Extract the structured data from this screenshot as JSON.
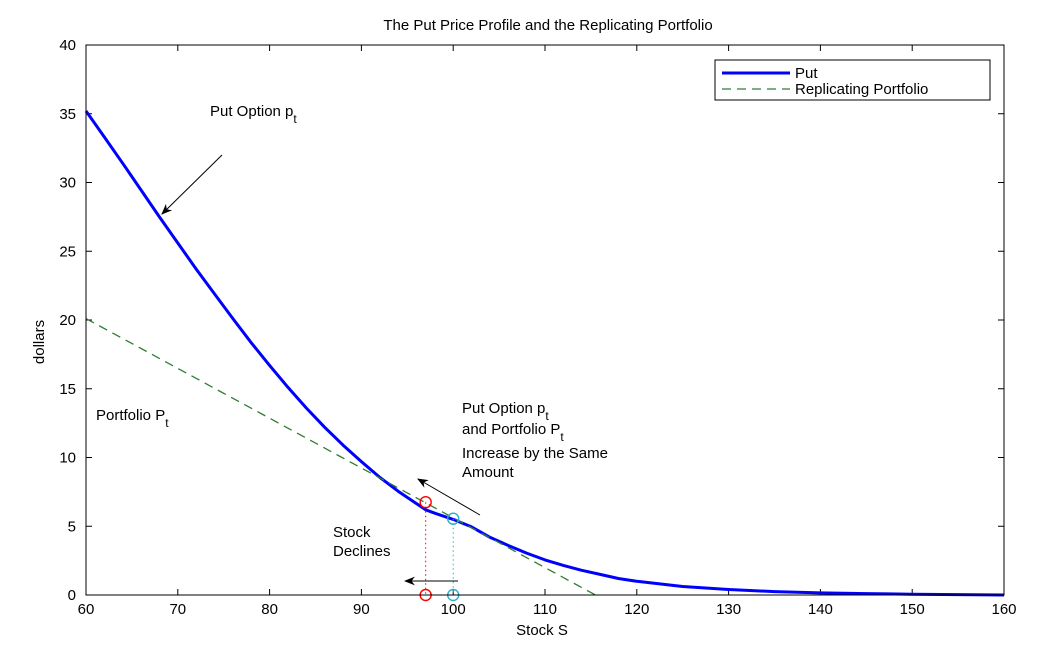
{
  "chart_data": {
    "type": "line",
    "title": "The Put Price Profile and the Replicating Portfolio",
    "xlabel": "Stock S",
    "ylabel": "dollars",
    "xlim": [
      60,
      160
    ],
    "ylim": [
      0,
      40
    ],
    "xticks": [
      60,
      70,
      80,
      90,
      100,
      110,
      120,
      130,
      140,
      150,
      160
    ],
    "yticks": [
      0,
      5,
      10,
      15,
      20,
      25,
      30,
      35,
      40
    ],
    "grid": false,
    "legend_position": "top-right",
    "series": [
      {
        "name": "Put",
        "style": "solid",
        "color": "#0000ff",
        "x": [
          60,
          62,
          64,
          66,
          68,
          70,
          72,
          74,
          76,
          78,
          80,
          82,
          84,
          86,
          88,
          90,
          92,
          94,
          96,
          97,
          98,
          100,
          102,
          104,
          106,
          108,
          110,
          112,
          114,
          116,
          118,
          120,
          125,
          130,
          135,
          140,
          145,
          150,
          155,
          160
        ],
        "y": [
          35.2,
          33.3,
          31.4,
          29.45,
          27.5,
          25.6,
          23.7,
          21.9,
          20.1,
          18.35,
          16.7,
          15.1,
          13.6,
          12.2,
          10.9,
          9.7,
          8.55,
          7.55,
          6.65,
          6.2,
          5.95,
          5.5,
          4.95,
          4.2,
          3.6,
          3.05,
          2.55,
          2.15,
          1.8,
          1.5,
          1.2,
          1.0,
          0.62,
          0.4,
          0.25,
          0.15,
          0.1,
          0.06,
          0.03,
          0.0
        ]
      },
      {
        "name": "Replicating Portfolio",
        "style": "dashed",
        "color": "#2e7d32",
        "x": [
          60,
          115.5
        ],
        "y": [
          20.1,
          0
        ]
      }
    ],
    "markers": [
      {
        "x": 97,
        "y": 6.75,
        "color": "#ff0000"
      },
      {
        "x": 100,
        "y": 5.55,
        "color": "#2ab0c8"
      },
      {
        "x": 97,
        "y": 0,
        "color": "#ff0000"
      },
      {
        "x": 100,
        "y": 0,
        "color": "#2ab0c8"
      }
    ],
    "annotations": {
      "put_option": "Put Option p",
      "put_option_sub": "t",
      "portfolio": "Portfolio P",
      "portfolio_sub": "t",
      "increase_line1": "Put Option p",
      "increase_line1_sub": "t",
      "increase_line2": "and Portfolio P",
      "increase_line2_sub": "t",
      "increase_line3": "Increase by the Same",
      "increase_line4": "Amount",
      "stock_line1": "Stock",
      "stock_line2": "Declines"
    }
  }
}
